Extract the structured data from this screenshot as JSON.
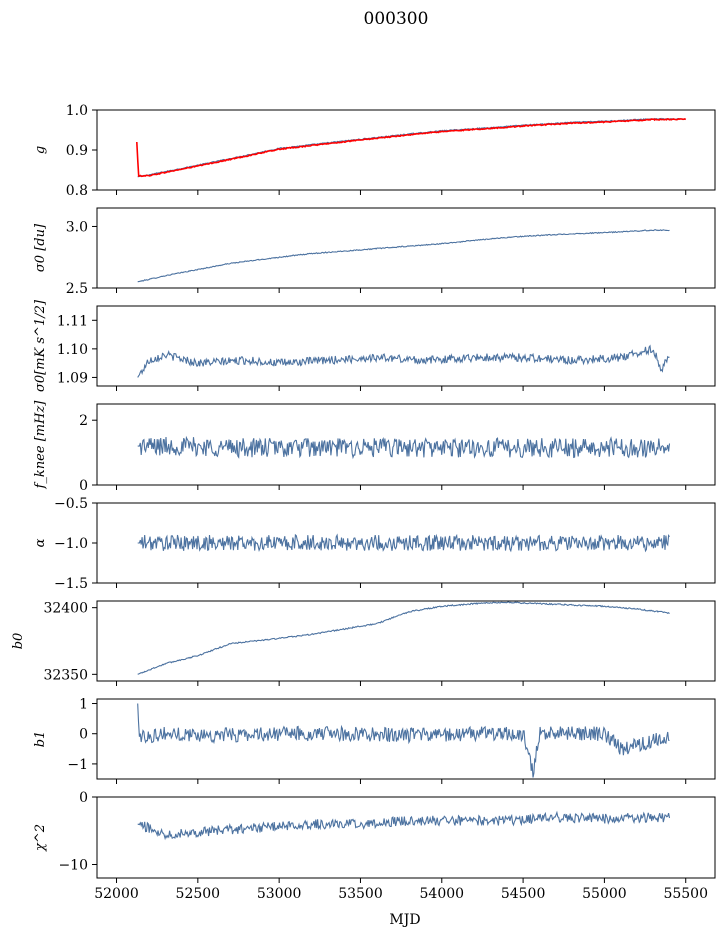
{
  "figure": {
    "title": "000300",
    "xlabel": "MJD"
  },
  "colors": {
    "series": "#4c72a0",
    "overlay": "#ff0000",
    "axis": "#000000"
  },
  "chart_data": [
    {
      "type": "line",
      "ylabel": "g",
      "xlim": [
        51880,
        55680
      ],
      "ylim": [
        0.8,
        1.0
      ],
      "yticks": [
        0.8,
        0.9,
        1.0
      ],
      "ytick_labels": [
        "0.8",
        "0.9",
        "1.0"
      ],
      "series": [
        {
          "x": [
            52130,
            52200,
            52500,
            52800,
            53000,
            53300,
            53500,
            53800,
            54000,
            54300,
            54500,
            54800,
            55000,
            55300,
            55500
          ],
          "values": [
            0.833,
            0.838,
            0.862,
            0.887,
            0.904,
            0.918,
            0.927,
            0.94,
            0.948,
            0.956,
            0.962,
            0.969,
            0.972,
            0.978,
            0.977
          ]
        },
        {
          "x": [
            52125,
            52135,
            52200,
            52500,
            52800,
            53000,
            53300,
            53500,
            53800,
            54000,
            54300,
            54500,
            54800,
            55000,
            55300,
            55500
          ],
          "values": [
            0.92,
            0.835,
            0.836,
            0.86,
            0.885,
            0.902,
            0.916,
            0.925,
            0.938,
            0.946,
            0.954,
            0.96,
            0.967,
            0.97,
            0.976,
            0.977
          ]
        }
      ]
    },
    {
      "type": "line",
      "ylabel": "σ0 [du]",
      "xlim": [
        51880,
        55680
      ],
      "ylim": [
        2.5,
        3.15
      ],
      "yticks": [
        2.5,
        3.0
      ],
      "ytick_labels": [
        "2.5",
        "3.0"
      ],
      "series": [
        {
          "x": [
            52130,
            52300,
            52500,
            52700,
            53000,
            53200,
            53500,
            53800,
            54000,
            54300,
            54500,
            54800,
            55000,
            55300,
            55400
          ],
          "values": [
            2.55,
            2.6,
            2.65,
            2.7,
            2.75,
            2.78,
            2.81,
            2.84,
            2.86,
            2.9,
            2.92,
            2.94,
            2.95,
            2.97,
            2.97
          ]
        }
      ]
    },
    {
      "type": "line",
      "ylabel": "σ0[mK s^1/2]",
      "xlim": [
        51880,
        55680
      ],
      "ylim": [
        1.087,
        1.115
      ],
      "yticks": [
        1.09,
        1.1,
        1.11
      ],
      "ytick_labels": [
        "1.09",
        "1.10",
        "1.11"
      ],
      "series": [
        {
          "x": [
            52130,
            52200,
            52300,
            52500,
            52800,
            53000,
            53300,
            53600,
            53900,
            54200,
            54500,
            54800,
            55100,
            55300,
            55350,
            55400
          ],
          "values": [
            1.09,
            1.096,
            1.098,
            1.095,
            1.096,
            1.095,
            1.096,
            1.097,
            1.096,
            1.097,
            1.097,
            1.096,
            1.097,
            1.1,
            1.093,
            1.097
          ]
        }
      ]
    },
    {
      "type": "line",
      "ylabel": "f_knee [mHz]",
      "xlim": [
        51880,
        55680
      ],
      "ylim": [
        0,
        2.5
      ],
      "yticks": [
        0,
        2
      ],
      "ytick_labels": [
        "0",
        "2"
      ],
      "series": [
        {
          "x": [
            52130,
            52400,
            52700,
            53000,
            53300,
            53600,
            53900,
            54200,
            54500,
            54800,
            55100,
            55400
          ],
          "values": [
            1.2,
            1.2,
            1.15,
            1.15,
            1.15,
            1.15,
            1.15,
            1.15,
            1.15,
            1.15,
            1.15,
            1.15
          ]
        }
      ]
    },
    {
      "type": "line",
      "ylabel": "α",
      "xlim": [
        51880,
        55680
      ],
      "ylim": [
        -1.5,
        -0.5
      ],
      "yticks": [
        -1.5,
        -1.0,
        -0.5
      ],
      "ytick_labels": [
        "−1.5",
        "−1.0",
        "−0.5"
      ],
      "series": [
        {
          "x": [
            52130,
            52400,
            52700,
            53000,
            53300,
            53600,
            53900,
            54200,
            54500,
            54800,
            55100,
            55400
          ],
          "values": [
            -1.0,
            -1.0,
            -1.0,
            -1.0,
            -1.0,
            -1.0,
            -1.0,
            -1.0,
            -1.0,
            -1.0,
            -1.0,
            -1.0
          ]
        }
      ]
    },
    {
      "type": "line",
      "ylabel": "b0",
      "xlim": [
        51880,
        55680
      ],
      "ylim": [
        32345,
        32405
      ],
      "yticks": [
        32350,
        32400
      ],
      "ytick_labels": [
        "32350",
        "32400"
      ],
      "series": [
        {
          "x": [
            52130,
            52300,
            52500,
            52700,
            53000,
            53200,
            53400,
            53600,
            53800,
            54000,
            54200,
            54400,
            54600,
            54800,
            55000,
            55200,
            55400
          ],
          "values": [
            32350,
            32358,
            32364,
            32373,
            32377,
            32380,
            32384,
            32388,
            32397,
            32401,
            32403,
            32404,
            32403,
            32402,
            32401,
            32399,
            32396
          ]
        }
      ]
    },
    {
      "type": "line",
      "ylabel": "b1",
      "xlim": [
        51880,
        55680
      ],
      "ylim": [
        -1.5,
        1.15
      ],
      "yticks": [
        -1,
        0,
        1
      ],
      "ytick_labels": [
        "−1",
        "0",
        "1"
      ],
      "series": [
        {
          "x": [
            52130,
            52140,
            52300,
            52600,
            53000,
            53400,
            53800,
            54200,
            54500,
            54560,
            54600,
            55000,
            55100,
            55400
          ],
          "values": [
            1.0,
            -0.1,
            0.0,
            -0.05,
            0.0,
            0.0,
            -0.05,
            0.0,
            0.0,
            -1.3,
            0.0,
            0.0,
            -0.5,
            -0.1
          ]
        }
      ]
    },
    {
      "type": "line",
      "ylabel": "χ^2",
      "xlim": [
        51880,
        55680
      ],
      "ylim": [
        -12,
        0
      ],
      "yticks": [
        -10,
        0
      ],
      "ytick_labels": [
        "−10",
        "0"
      ],
      "xticks": [
        52000,
        52500,
        53000,
        53500,
        54000,
        54500,
        55000,
        55500
      ],
      "xtick_labels": [
        "52000",
        "52500",
        "53000",
        "53500",
        "54000",
        "54500",
        "55000",
        "55500"
      ],
      "series": [
        {
          "x": [
            52130,
            52300,
            52600,
            52900,
            53200,
            53500,
            53800,
            54100,
            54400,
            54700,
            55000,
            55300,
            55400
          ],
          "values": [
            -4,
            -5.5,
            -5,
            -4.5,
            -4,
            -4,
            -3.5,
            -3.5,
            -3.5,
            -3,
            -3.2,
            -3,
            -3
          ]
        }
      ]
    }
  ]
}
